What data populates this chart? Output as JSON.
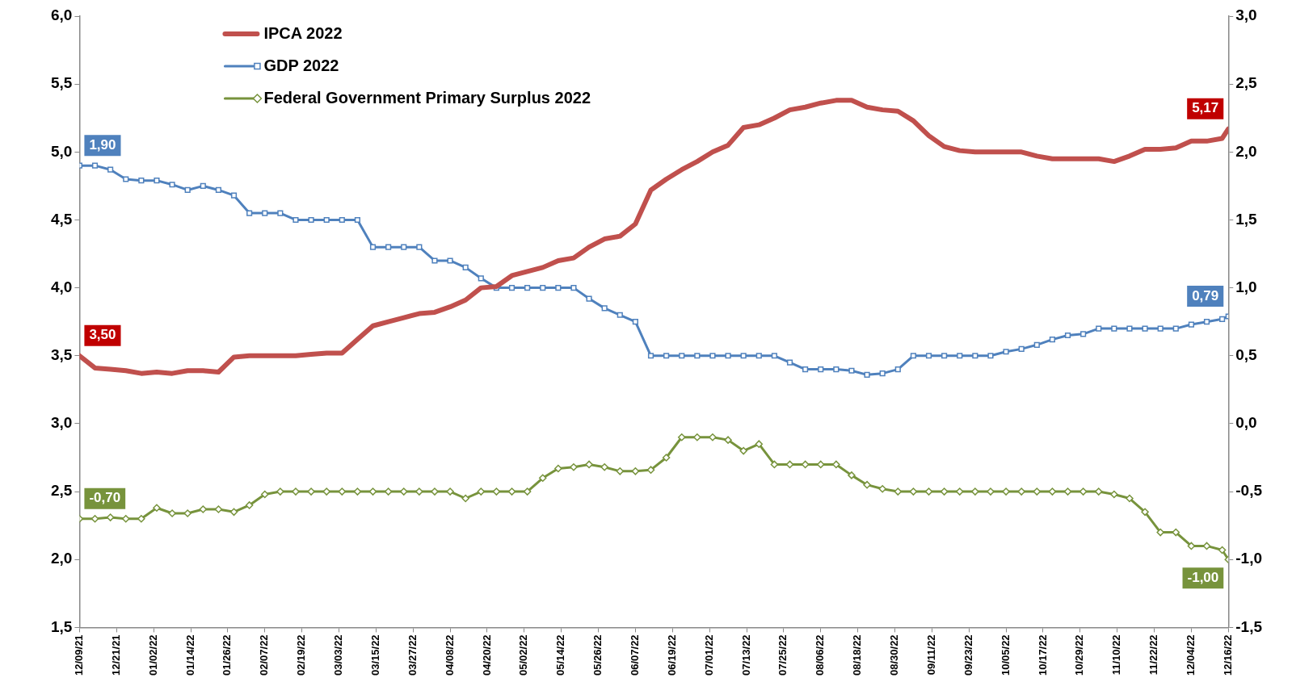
{
  "chart_data": {
    "type": "line",
    "x": [
      "2021-12-09",
      "2021-12-14",
      "2021-12-19",
      "2021-12-24",
      "2021-12-29",
      "2022-01-03",
      "2022-01-08",
      "2022-01-13",
      "2022-01-18",
      "2022-01-23",
      "2022-01-28",
      "2022-02-02",
      "2022-02-07",
      "2022-02-12",
      "2022-02-17",
      "2022-02-22",
      "2022-02-27",
      "2022-03-04",
      "2022-03-09",
      "2022-03-14",
      "2022-03-19",
      "2022-03-24",
      "2022-03-29",
      "2022-04-03",
      "2022-04-08",
      "2022-04-13",
      "2022-04-18",
      "2022-04-23",
      "2022-04-28",
      "2022-05-03",
      "2022-05-08",
      "2022-05-13",
      "2022-05-18",
      "2022-05-23",
      "2022-05-28",
      "2022-06-02",
      "2022-06-07",
      "2022-06-12",
      "2022-06-17",
      "2022-06-22",
      "2022-06-27",
      "2022-07-02",
      "2022-07-07",
      "2022-07-12",
      "2022-07-17",
      "2022-07-22",
      "2022-07-27",
      "2022-08-01",
      "2022-08-06",
      "2022-08-11",
      "2022-08-16",
      "2022-08-21",
      "2022-08-26",
      "2022-08-31",
      "2022-09-05",
      "2022-09-10",
      "2022-09-15",
      "2022-09-20",
      "2022-09-25",
      "2022-09-30",
      "2022-10-05",
      "2022-10-10",
      "2022-10-15",
      "2022-10-20",
      "2022-10-25",
      "2022-10-30",
      "2022-11-04",
      "2022-11-09",
      "2022-11-14",
      "2022-11-19",
      "2022-11-24",
      "2022-11-29",
      "2022-12-04",
      "2022-12-09",
      "2022-12-14",
      "2022-12-16"
    ],
    "series": [
      {
        "name": "IPCA 2022",
        "color": "#c0504d",
        "marker": "none",
        "values": [
          3.5,
          3.41,
          3.4,
          3.39,
          3.37,
          3.38,
          3.37,
          3.39,
          3.39,
          3.38,
          3.49,
          3.5,
          3.5,
          3.5,
          3.5,
          3.51,
          3.52,
          3.52,
          3.62,
          3.72,
          3.75,
          3.78,
          3.81,
          3.82,
          3.86,
          3.91,
          4.0,
          4.01,
          4.09,
          4.12,
          4.15,
          4.2,
          4.22,
          4.3,
          4.36,
          4.38,
          4.47,
          4.72,
          4.8,
          4.87,
          4.93,
          5.0,
          5.05,
          5.18,
          5.2,
          5.25,
          5.31,
          5.33,
          5.36,
          5.38,
          5.38,
          5.33,
          5.31,
          5.3,
          5.23,
          5.12,
          5.04,
          5.01,
          5.0,
          5.0,
          5.0,
          5.0,
          4.97,
          4.95,
          4.95,
          4.95,
          4.95,
          4.93,
          4.97,
          5.02,
          5.02,
          5.03,
          5.08,
          5.08,
          5.1,
          5.17
        ],
        "value_labels": [
          "3,50",
          null,
          null,
          null,
          null,
          null,
          null,
          null,
          null,
          null,
          null,
          null,
          null,
          null,
          null,
          null,
          null,
          null,
          null,
          null,
          null,
          null,
          null,
          null,
          null,
          null,
          null,
          null,
          null,
          null,
          null,
          null,
          null,
          null,
          null,
          null,
          null,
          null,
          null,
          null,
          null,
          null,
          null,
          null,
          null,
          null,
          null,
          null,
          null,
          null,
          null,
          null,
          null,
          null,
          null,
          null,
          null,
          null,
          null,
          null,
          null,
          null,
          null,
          null,
          null,
          null,
          null,
          null,
          null,
          null,
          null,
          null,
          null,
          null,
          null,
          "5,17"
        ]
      },
      {
        "name": "GDP 2022",
        "color": "#4f81bd",
        "marker": "square",
        "axis": "y2",
        "values": [
          1.9,
          1.9,
          1.87,
          1.8,
          1.79,
          1.79,
          1.76,
          1.72,
          1.75,
          1.72,
          1.68,
          1.55,
          1.55,
          1.55,
          1.5,
          1.5,
          1.5,
          1.5,
          1.5,
          1.3,
          1.3,
          1.3,
          1.3,
          1.2,
          1.2,
          1.15,
          1.07,
          1.0,
          1.0,
          1.0,
          1.0,
          1.0,
          1.0,
          0.92,
          0.85,
          0.8,
          0.75,
          0.5,
          0.5,
          0.5,
          0.5,
          0.5,
          0.5,
          0.5,
          0.5,
          0.5,
          0.45,
          0.4,
          0.4,
          0.4,
          0.39,
          0.36,
          0.37,
          0.4,
          0.5,
          0.5,
          0.5,
          0.5,
          0.5,
          0.5,
          0.53,
          0.55,
          0.58,
          0.62,
          0.65,
          0.66,
          0.7,
          0.7,
          0.7,
          0.7,
          0.7,
          0.7,
          0.73,
          0.75,
          0.77,
          0.79
        ],
        "value_labels": [
          "1,90",
          null,
          null,
          null,
          null,
          null,
          null,
          null,
          null,
          null,
          null,
          null,
          null,
          null,
          null,
          null,
          null,
          null,
          null,
          null,
          null,
          null,
          null,
          null,
          null,
          null,
          null,
          null,
          null,
          null,
          null,
          null,
          null,
          null,
          null,
          null,
          null,
          null,
          null,
          null,
          null,
          null,
          null,
          null,
          null,
          null,
          null,
          null,
          null,
          null,
          null,
          null,
          null,
          null,
          null,
          null,
          null,
          null,
          null,
          null,
          null,
          null,
          null,
          null,
          null,
          null,
          null,
          null,
          null,
          null,
          null,
          null,
          null,
          null,
          null,
          "0,79"
        ]
      },
      {
        "name": "Federal Government Primary Surplus 2022",
        "color": "#77933c",
        "marker": "diamond",
        "axis": "y2",
        "values": [
          -0.7,
          -0.7,
          -0.69,
          -0.7,
          -0.7,
          -0.62,
          -0.66,
          -0.66,
          -0.63,
          -0.63,
          -0.65,
          -0.6,
          -0.52,
          -0.5,
          -0.5,
          -0.5,
          -0.5,
          -0.5,
          -0.5,
          -0.5,
          -0.5,
          -0.5,
          -0.5,
          -0.5,
          -0.5,
          -0.55,
          -0.5,
          -0.5,
          -0.5,
          -0.5,
          -0.4,
          -0.33,
          -0.32,
          -0.3,
          -0.32,
          -0.35,
          -0.35,
          -0.34,
          -0.25,
          -0.1,
          -0.1,
          -0.1,
          -0.12,
          -0.2,
          -0.15,
          -0.3,
          -0.3,
          -0.3,
          -0.3,
          -0.3,
          -0.38,
          -0.45,
          -0.48,
          -0.5,
          -0.5,
          -0.5,
          -0.5,
          -0.5,
          -0.5,
          -0.5,
          -0.5,
          -0.5,
          -0.5,
          -0.5,
          -0.5,
          -0.5,
          -0.5,
          -0.52,
          -0.55,
          -0.65,
          -0.8,
          -0.8,
          -0.9,
          -0.9,
          -0.93,
          -1.0
        ],
        "value_labels": [
          "-0,70",
          null,
          null,
          null,
          null,
          null,
          null,
          null,
          null,
          null,
          null,
          null,
          null,
          null,
          null,
          null,
          null,
          null,
          null,
          null,
          null,
          null,
          null,
          null,
          null,
          null,
          null,
          null,
          null,
          null,
          null,
          null,
          null,
          null,
          null,
          null,
          null,
          null,
          null,
          null,
          null,
          null,
          null,
          null,
          null,
          null,
          null,
          null,
          null,
          null,
          null,
          null,
          null,
          null,
          null,
          null,
          null,
          null,
          null,
          null,
          null,
          null,
          null,
          null,
          null,
          null,
          null,
          null,
          null,
          null,
          null,
          null,
          null,
          null,
          null,
          "-1,00"
        ]
      }
    ],
    "xlim": [
      "2021-12-09",
      "2022-12-16"
    ],
    "xticks": [
      {
        "value": "2021-12-09",
        "label": "12/09/21"
      },
      {
        "value": "2021-12-21",
        "label": "12/21/21"
      },
      {
        "value": "2022-01-02",
        "label": "01/02/22"
      },
      {
        "value": "2022-01-14",
        "label": "01/14/22"
      },
      {
        "value": "2022-01-26",
        "label": "01/26/22"
      },
      {
        "value": "2022-02-07",
        "label": "02/07/22"
      },
      {
        "value": "2022-02-19",
        "label": "02/19/22"
      },
      {
        "value": "2022-03-03",
        "label": "03/03/22"
      },
      {
        "value": "2022-03-15",
        "label": "03/15/22"
      },
      {
        "value": "2022-03-27",
        "label": "03/27/22"
      },
      {
        "value": "2022-04-08",
        "label": "04/08/22"
      },
      {
        "value": "2022-04-20",
        "label": "04/20/22"
      },
      {
        "value": "2022-05-02",
        "label": "05/02/22"
      },
      {
        "value": "2022-05-14",
        "label": "05/14/22"
      },
      {
        "value": "2022-05-26",
        "label": "05/26/22"
      },
      {
        "value": "2022-06-07",
        "label": "06/07/22"
      },
      {
        "value": "2022-06-19",
        "label": "06/19/22"
      },
      {
        "value": "2022-07-01",
        "label": "07/01/22"
      },
      {
        "value": "2022-07-13",
        "label": "07/13/22"
      },
      {
        "value": "2022-07-25",
        "label": "07/25/22"
      },
      {
        "value": "2022-08-06",
        "label": "08/06/22"
      },
      {
        "value": "2022-08-18",
        "label": "08/18/22"
      },
      {
        "value": "2022-08-30",
        "label": "08/30/22"
      },
      {
        "value": "2022-09-11",
        "label": "09/11/22"
      },
      {
        "value": "2022-09-23",
        "label": "09/23/22"
      },
      {
        "value": "2022-10-05",
        "label": "10/05/22"
      },
      {
        "value": "2022-10-17",
        "label": "10/17/22"
      },
      {
        "value": "2022-10-29",
        "label": "10/29/22"
      },
      {
        "value": "2022-11-10",
        "label": "11/10/22"
      },
      {
        "value": "2022-11-22",
        "label": "11/22/22"
      },
      {
        "value": "2022-12-04",
        "label": "12/04/22"
      },
      {
        "value": "2022-12-16",
        "label": "12/16/22"
      }
    ],
    "ylim": [
      1.5,
      6.0
    ],
    "yticks": [
      {
        "value": 1.5,
        "label": "1,5"
      },
      {
        "value": 2.0,
        "label": "2,0"
      },
      {
        "value": 2.5,
        "label": "2,5"
      },
      {
        "value": 3.0,
        "label": "3,0"
      },
      {
        "value": 3.5,
        "label": "3,5"
      },
      {
        "value": 4.0,
        "label": "4,0"
      },
      {
        "value": 4.5,
        "label": "4,5"
      },
      {
        "value": 5.0,
        "label": "5,0"
      },
      {
        "value": 5.5,
        "label": "5,5"
      },
      {
        "value": 6.0,
        "label": "6,0"
      }
    ],
    "y2lim": [
      -1.5,
      3.0
    ],
    "y2ticks": [
      {
        "value": -1.5,
        "label": "-1,5"
      },
      {
        "value": -1.0,
        "label": "-1,0"
      },
      {
        "value": -0.5,
        "label": "-0,5"
      },
      {
        "value": 0.0,
        "label": "0,0"
      },
      {
        "value": 0.5,
        "label": "0,5"
      },
      {
        "value": 1.0,
        "label": "1,0"
      },
      {
        "value": 1.5,
        "label": "1,5"
      },
      {
        "value": 2.0,
        "label": "2,0"
      },
      {
        "value": 2.5,
        "label": "2,5"
      },
      {
        "value": 3.0,
        "label": "3,0"
      }
    ],
    "grid": false,
    "legend": "top left"
  }
}
